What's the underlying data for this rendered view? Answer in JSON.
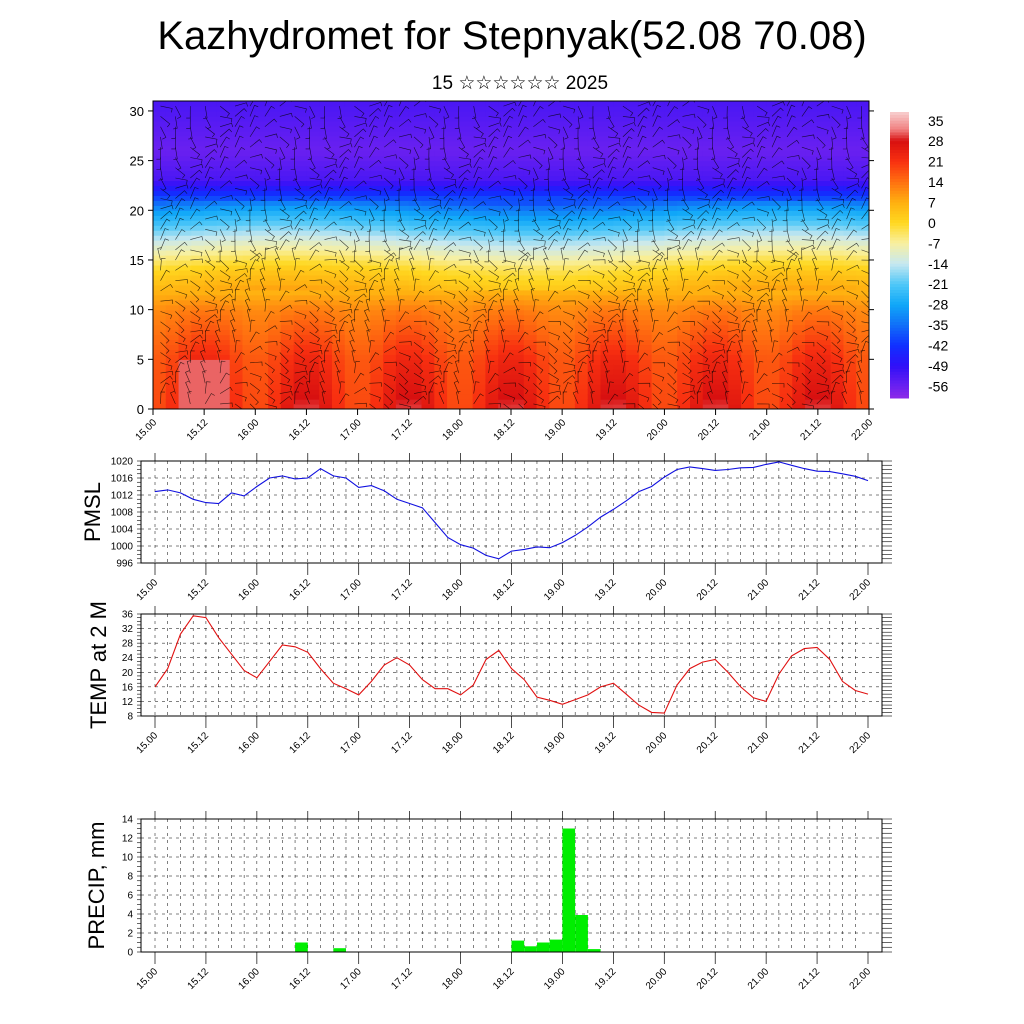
{
  "title": "Kazhydromet for Stepnyak(52.08 70.08)",
  "subtitle": "15 ☆☆☆☆☆☆ 2025",
  "colors": {
    "pmsl_line": "#1010e0",
    "temp_line": "#e01010",
    "precip_bar": "#00ee00"
  },
  "chart_data": [
    {
      "type": "heatmap",
      "title": "",
      "xlabel": "",
      "ylabel": "",
      "x_ticks": [
        "15.00",
        "15.12",
        "16.00",
        "16.12",
        "17.00",
        "17.12",
        "18.00",
        "18.12",
        "19.00",
        "19.12",
        "20.00",
        "20.12",
        "21.00",
        "21.12",
        "22.00"
      ],
      "y_ticks": [
        0,
        5,
        10,
        15,
        20,
        25,
        30
      ],
      "ylim": [
        0,
        31
      ],
      "colorbar_labels": [
        "35",
        "28",
        "21",
        "14",
        "7",
        "0",
        "-7",
        "-14",
        "-21",
        "-28",
        "-35",
        "-42",
        "-49",
        "-56"
      ],
      "colorbar_range": [
        -60,
        38
      ],
      "vertical_profile": [
        {
          "level": 0,
          "value": 24
        },
        {
          "level": 5,
          "value": 20
        },
        {
          "level": 10,
          "value": 12
        },
        {
          "level": 14,
          "value": 0
        },
        {
          "level": 17,
          "value": -14
        },
        {
          "level": 20,
          "value": -30
        },
        {
          "level": 23,
          "value": -52
        },
        {
          "level": 26,
          "value": -56
        },
        {
          "level": 31,
          "value": -52
        }
      ],
      "wind_barbs": true
    },
    {
      "type": "line",
      "ylabel": "PMSL",
      "x_ticks": [
        "15.00",
        "15.12",
        "16.00",
        "16.12",
        "17.00",
        "17.12",
        "18.00",
        "18.12",
        "19.00",
        "19.12",
        "20.00",
        "20.12",
        "21.00",
        "21.12",
        "22.00"
      ],
      "y_ticks": [
        996,
        1000,
        1004,
        1008,
        1012,
        1016,
        1020
      ],
      "ylim": [
        996,
        1020
      ],
      "grid": true,
      "series": [
        {
          "values": [
            1012.8,
            1013.2,
            1012.5,
            1011,
            1010.2,
            1010,
            1012.5,
            1011.8,
            1014,
            1016,
            1016.5,
            1015.8,
            1016,
            1018.2,
            1016.5,
            1016,
            1013.8,
            1014.2,
            1013,
            1011,
            1010,
            1009,
            1005.5,
            1002,
            1000.3,
            999.5,
            997.8,
            997,
            998.8,
            999.2,
            999.8,
            999.6,
            1000.8,
            1002.5,
            1004.5,
            1006.8,
            1008.6,
            1010.6,
            1012.8,
            1014,
            1016.2,
            1018,
            1018.6,
            1018.2,
            1017.8,
            1018,
            1018.4,
            1018.5,
            1019.2,
            1019.8,
            1019,
            1018.2,
            1017.6,
            1017.5,
            1017,
            1016.4,
            1015.4
          ]
        }
      ]
    },
    {
      "type": "line",
      "ylabel": "TEMP at 2 M",
      "x_ticks": [
        "15.00",
        "15.12",
        "16.00",
        "16.12",
        "17.00",
        "17.12",
        "18.00",
        "18.12",
        "19.00",
        "19.12",
        "20.00",
        "20.12",
        "21.00",
        "21.12",
        "22.00"
      ],
      "y_ticks": [
        8,
        12,
        16,
        20,
        24,
        28,
        32,
        36
      ],
      "ylim": [
        8,
        36
      ],
      "grid": true,
      "series": [
        {
          "values": [
            16,
            21,
            30.5,
            35.5,
            35,
            29.5,
            25,
            20.5,
            18.5,
            23,
            27.5,
            27,
            25.5,
            21,
            17,
            15.5,
            13.8,
            17.5,
            22,
            24,
            22,
            18,
            15.5,
            15.5,
            13.8,
            16.5,
            23.5,
            26,
            21,
            18,
            13.2,
            12.3,
            11.2,
            12.5,
            13.8,
            16,
            17,
            14,
            11,
            9,
            8.8,
            16.5,
            21,
            22.8,
            23.5,
            20,
            16,
            13,
            12,
            19.5,
            24.5,
            26.5,
            26.8,
            23.5,
            17.5,
            15,
            14
          ]
        }
      ]
    },
    {
      "type": "bar",
      "ylabel": "PRECIP, mm",
      "x_ticks": [
        "15.00",
        "15.12",
        "16.00",
        "16.12",
        "17.00",
        "17.12",
        "18.00",
        "18.12",
        "19.00",
        "19.12",
        "20.00",
        "20.12",
        "21.00",
        "21.12",
        "22.00"
      ],
      "y_ticks": [
        0,
        2,
        4,
        6,
        8,
        10,
        12,
        14
      ],
      "ylim": [
        0,
        14
      ],
      "grid": true,
      "bars": [
        {
          "step": 11,
          "value": 1.0
        },
        {
          "step": 14,
          "value": 0.4
        },
        {
          "step": 28,
          "value": 1.2
        },
        {
          "step": 29,
          "value": 0.6
        },
        {
          "step": 30,
          "value": 1.0
        },
        {
          "step": 31,
          "value": 1.3
        },
        {
          "step": 32,
          "value": 13.0
        },
        {
          "step": 33,
          "value": 3.9
        },
        {
          "step": 34,
          "value": 0.3
        }
      ]
    }
  ]
}
